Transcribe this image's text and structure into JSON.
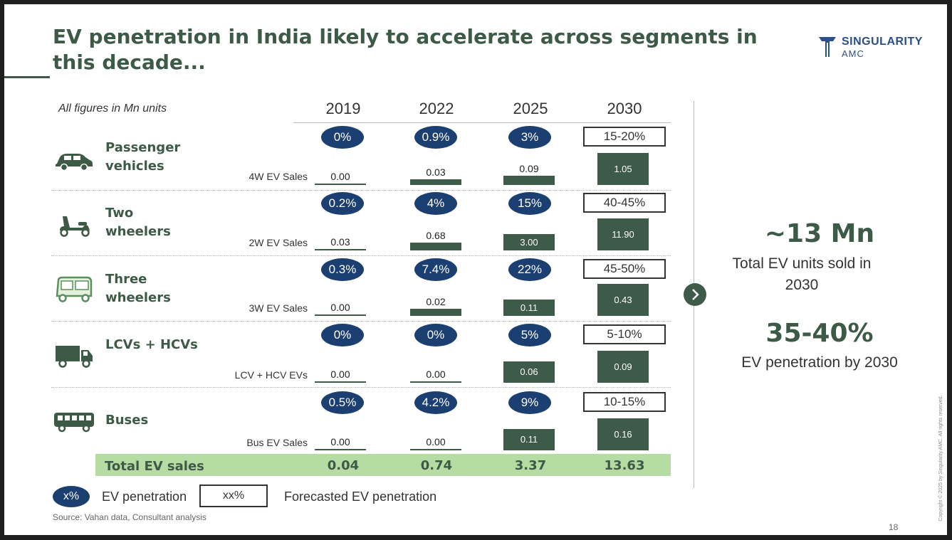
{
  "title": "EV penetration in India likely to accelerate across segments in this decade...",
  "logo": {
    "line1": "SINGULARITY",
    "line2": "AMC",
    "color": "#2b4f8a"
  },
  "units_note": "All figures in Mn units",
  "years": [
    "2019",
    "2022",
    "2025",
    "2030"
  ],
  "segments": [
    {
      "name": "Passenger vehicles",
      "icon": "car-icon",
      "row_label": "4W EV Sales",
      "penetration": [
        "0%",
        "0.9%",
        "3%"
      ],
      "forecast": "15-20%",
      "sales": [
        0.0,
        0.03,
        0.09,
        1.05
      ],
      "sales_text": [
        "0.00",
        "0.03",
        "0.09",
        "1.05"
      ]
    },
    {
      "name": "Two wheelers",
      "icon": "scooter-icon",
      "row_label": "2W EV Sales",
      "penetration": [
        "0.2%",
        "4%",
        "15%"
      ],
      "forecast": "40-45%",
      "sales": [
        0.03,
        0.68,
        3.0,
        11.9
      ],
      "sales_text": [
        "0.03",
        "0.68",
        "3.00",
        "11.90"
      ]
    },
    {
      "name": "Three wheelers",
      "icon": "auto-rickshaw-icon",
      "row_label": "3W EV Sales",
      "penetration": [
        "0.3%",
        "7.4%",
        "22%"
      ],
      "forecast": "45-50%",
      "sales": [
        0.0,
        0.02,
        0.11,
        0.43
      ],
      "sales_text": [
        "0.00",
        "0.02",
        "0.11",
        "0.43"
      ]
    },
    {
      "name": "LCVs + HCVs",
      "icon": "truck-icon",
      "row_label": "LCV + HCV EVs",
      "penetration": [
        "0%",
        "0%",
        "5%"
      ],
      "forecast": "5-10%",
      "sales": [
        0.0,
        0.0,
        0.06,
        0.09
      ],
      "sales_text": [
        "0.00",
        "0.00",
        "0.06",
        "0.09"
      ]
    },
    {
      "name": "Buses",
      "icon": "bus-icon",
      "row_label": "Bus EV Sales",
      "penetration": [
        "0.5%",
        "4.2%",
        "9%"
      ],
      "forecast": "10-15%",
      "sales": [
        0.0,
        0.0,
        0.11,
        0.16
      ],
      "sales_text": [
        "0.00",
        "0.00",
        "0.11",
        "0.16"
      ]
    }
  ],
  "total": {
    "label": "Total EV sales",
    "values": [
      "0.04",
      "0.74",
      "3.37",
      "13.63"
    ]
  },
  "stats": [
    {
      "value": "~13 Mn",
      "desc": "Total EV units sold in 2030"
    },
    {
      "value": "35-40%",
      "desc": "EV penetration by 2030"
    }
  ],
  "legend": {
    "pill_text": "x%",
    "pill_label": "EV penetration",
    "box_text": "xx%",
    "box_label": "Forecasted EV penetration"
  },
  "source": "Source: Vahan data, Consultant analysis",
  "page_number": "18",
  "copyright": "Copyright © 2025 by Singularity AMC. All rights reserved.",
  "colors": {
    "primary_green": "#3d5a47",
    "bar_green": "#3e5a48",
    "navy": "#1c3f72",
    "total_band": "#b6dca4"
  }
}
